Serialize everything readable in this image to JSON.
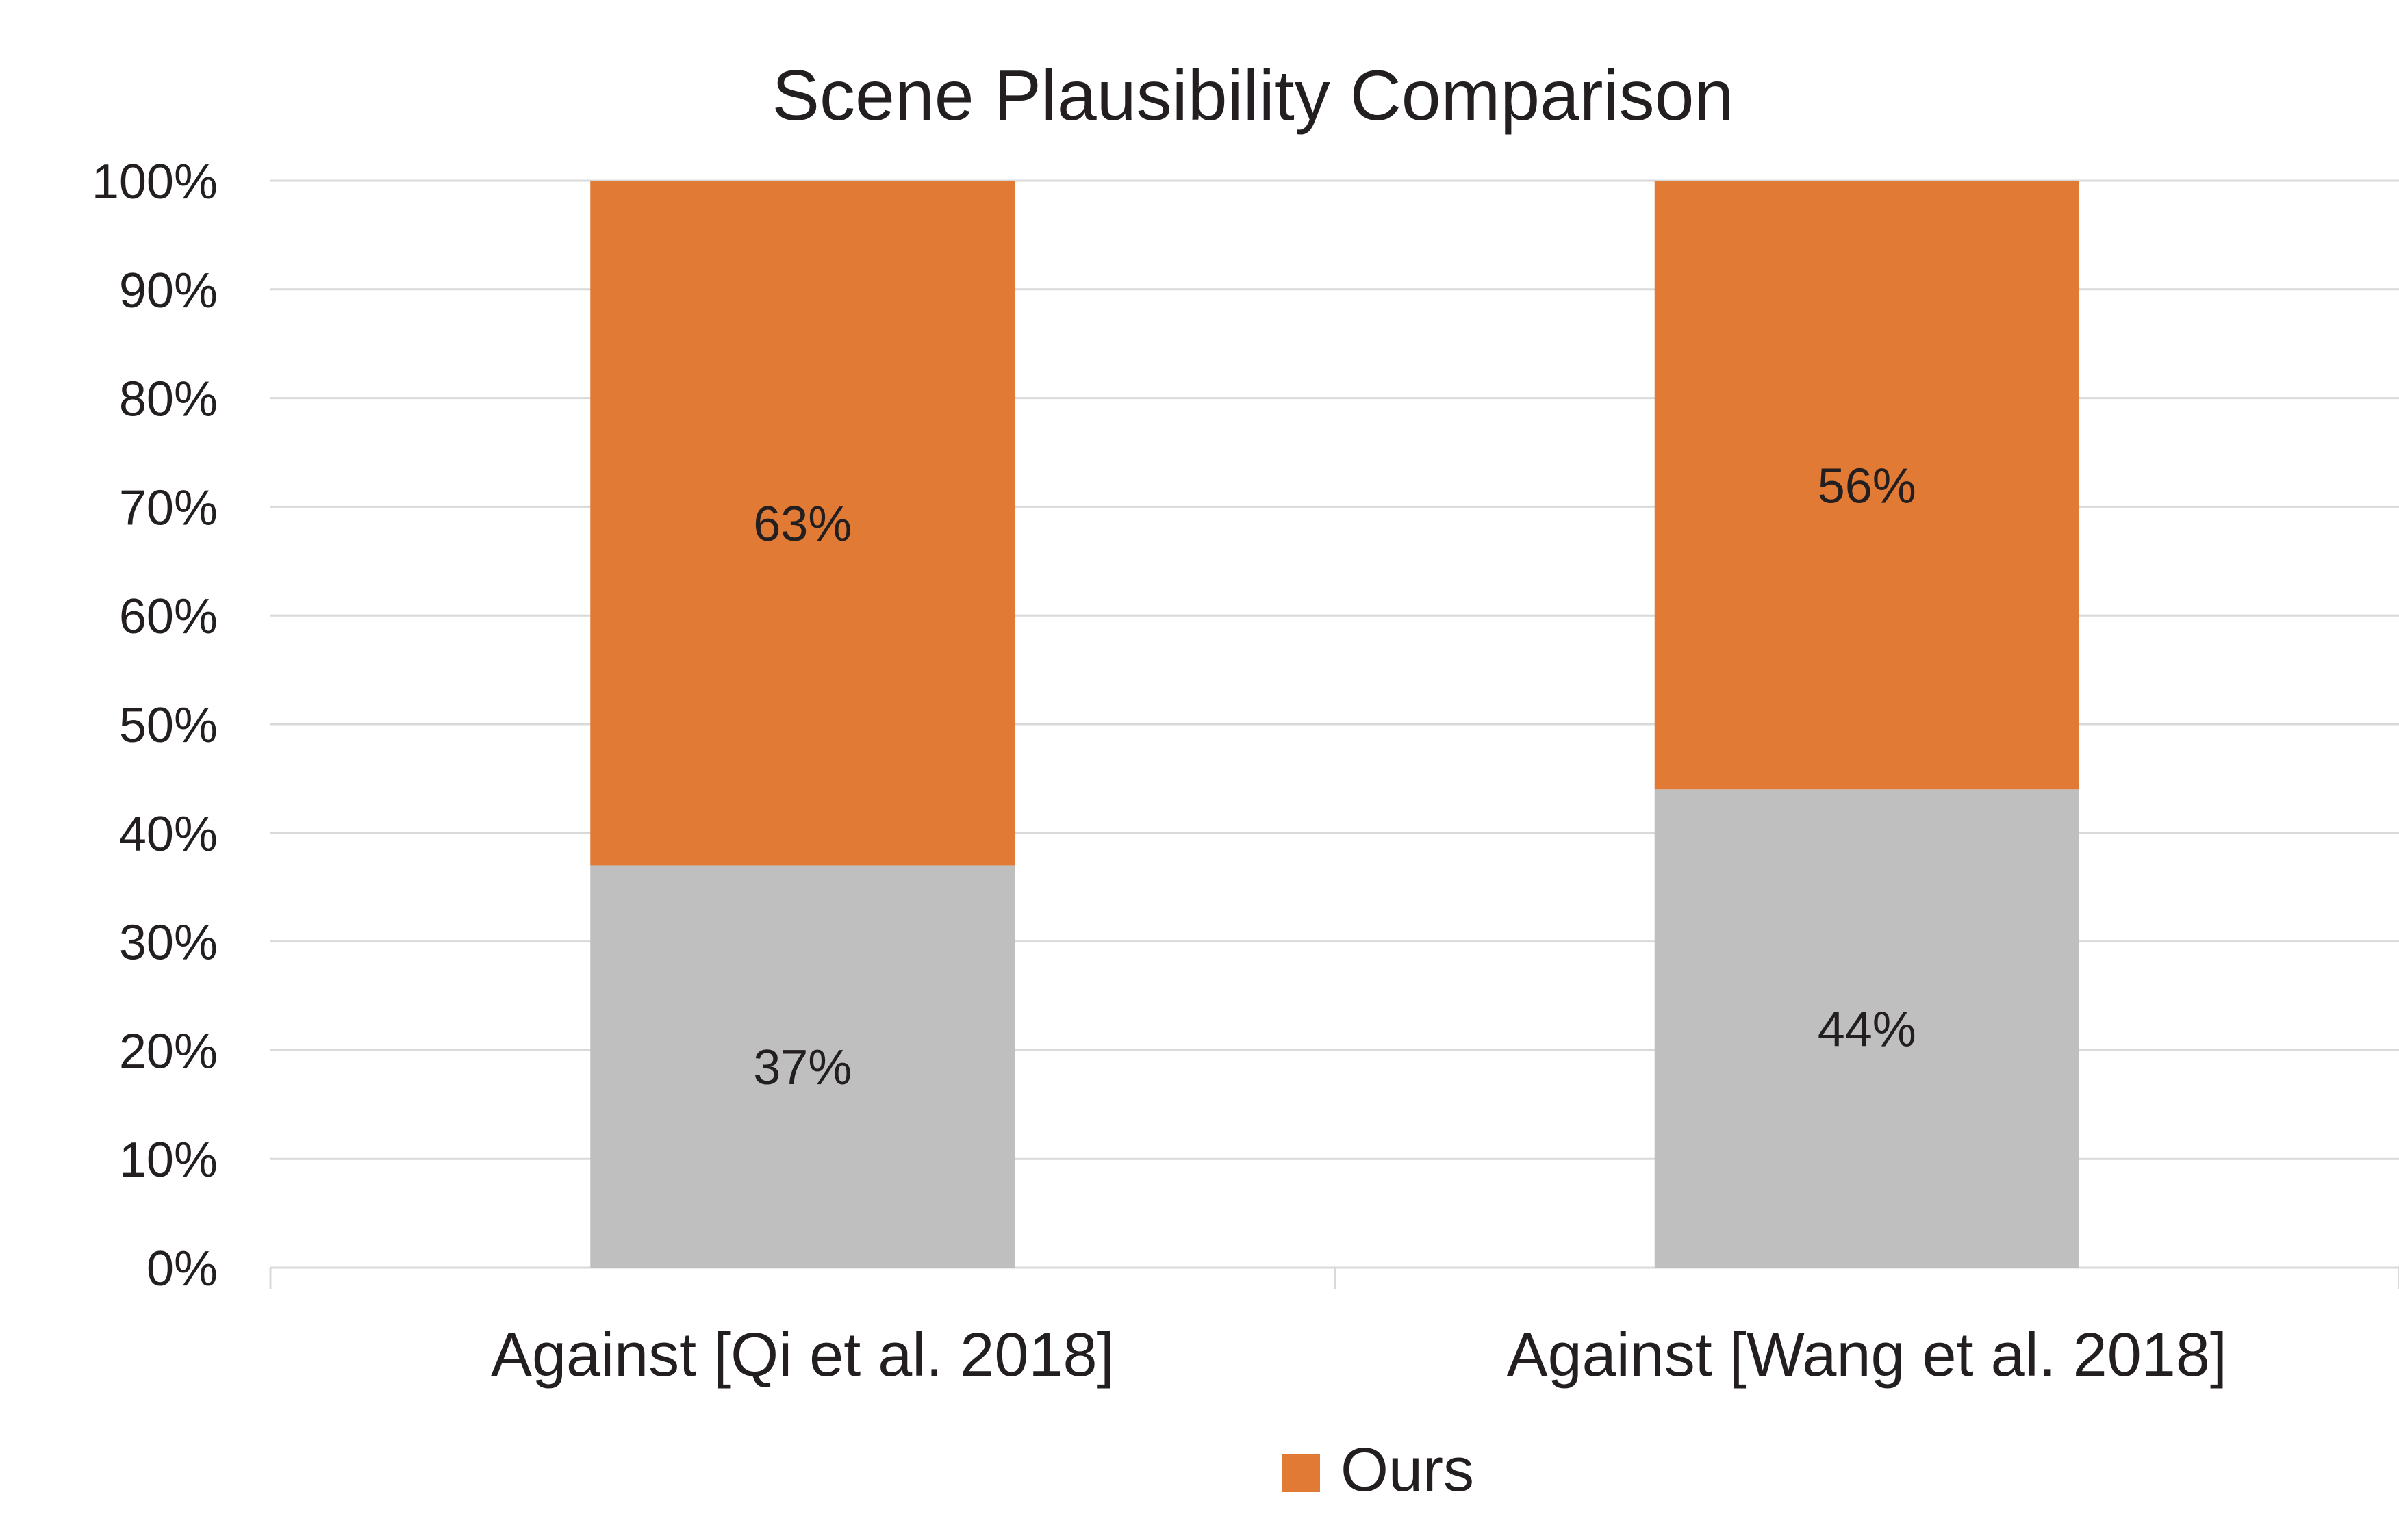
{
  "chart_data": {
    "type": "bar",
    "stacked": true,
    "title": "Scene Plausibility Comparison",
    "categories": [
      "Against [Qi et al. 2018]",
      "Against [Wang et al. 2018]"
    ],
    "series": [
      {
        "values": [
          37,
          44
        ],
        "labels": [
          "37%",
          "44%"
        ],
        "color": "#bfbfbf"
      },
      {
        "name": "Ours",
        "values": [
          63,
          56
        ],
        "labels": [
          "63%",
          "56%"
        ],
        "color": "#e07a34"
      }
    ],
    "ylim": [
      0,
      100
    ],
    "y_ticks": [
      "0%",
      "10%",
      "20%",
      "30%",
      "40%",
      "50%",
      "60%",
      "70%",
      "80%",
      "90%",
      "100%"
    ],
    "grid": true,
    "legend": {
      "placement": "bottom-center",
      "entries": [
        "Ours"
      ]
    },
    "colors": {
      "grid": "#d9d9d9",
      "text": "#231f20"
    }
  }
}
